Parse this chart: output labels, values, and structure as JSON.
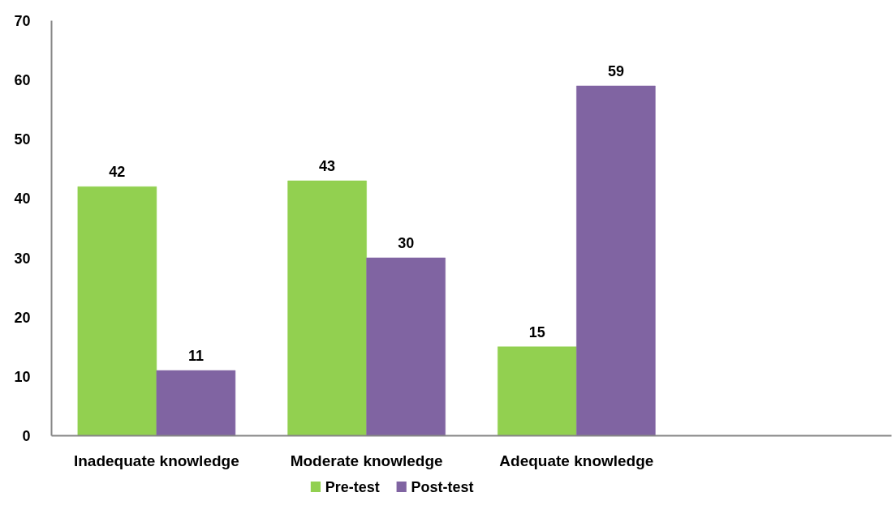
{
  "chart_data": {
    "type": "bar",
    "categories": [
      "Inadequate knowledge",
      "Moderate knowledge",
      "Adequate knowledge",
      null
    ],
    "series": [
      {
        "name": "Pre-test",
        "color": "#92d050",
        "values": [
          42,
          43,
          15,
          null
        ]
      },
      {
        "name": "Post-test",
        "color": "#8064a2",
        "values": [
          11,
          30,
          59,
          null
        ]
      }
    ],
    "ylim": [
      0,
      70
    ],
    "yticks": [
      0,
      10,
      20,
      30,
      40,
      50,
      60,
      70
    ],
    "data_labels": true,
    "legend": "bottom"
  }
}
